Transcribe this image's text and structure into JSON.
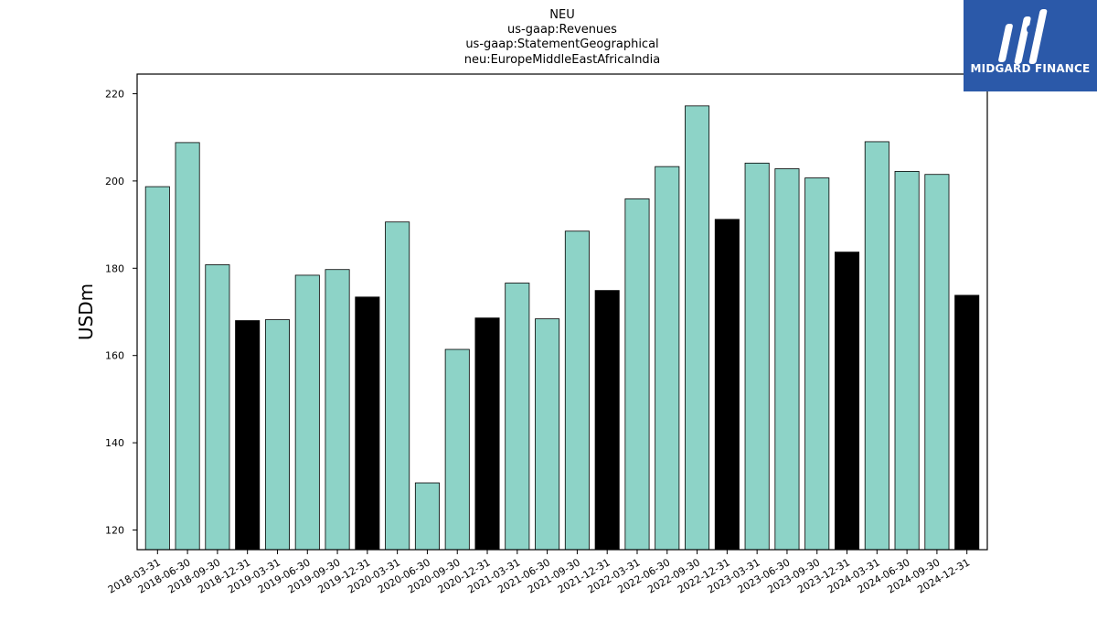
{
  "title_lines": [
    "NEU",
    "us-gaap:Revenues",
    "us-gaap:StatementGeographical",
    "neu:EuropeMiddleEastAfricaIndia"
  ],
  "logo": {
    "text": "MIDGARD FINANCE",
    "color": "#2b59a9"
  },
  "chart_data": {
    "type": "bar",
    "title": "NEU\nus-gaap:Revenues\nus-gaap:StatementGeographical\nneu:EuropeMiddleEastAfricaIndia",
    "xlabel": "",
    "ylabel": "USDm",
    "ylim": [
      115.5,
      224.5
    ],
    "yticks": [
      120,
      140,
      160,
      180,
      200,
      220
    ],
    "grid": false,
    "colors": {
      "quarter": "#8dd3c7",
      "year_end": "#000000"
    },
    "categories": [
      "2018-03-31",
      "2018-06-30",
      "2018-09-30",
      "2018-12-31",
      "2019-03-31",
      "2019-06-30",
      "2019-09-30",
      "2019-12-31",
      "2020-03-31",
      "2020-06-30",
      "2020-09-30",
      "2020-12-31",
      "2021-03-31",
      "2021-06-30",
      "2021-09-30",
      "2021-12-31",
      "2022-03-31",
      "2022-06-30",
      "2022-09-30",
      "2022-12-31",
      "2023-03-31",
      "2023-06-30",
      "2023-09-30",
      "2023-12-31",
      "2024-03-31",
      "2024-06-30",
      "2024-09-30",
      "2024-12-31"
    ],
    "values": [
      198.7,
      208.8,
      180.8,
      168.0,
      168.2,
      178.4,
      179.7,
      173.4,
      190.6,
      130.8,
      161.4,
      168.6,
      176.6,
      168.4,
      188.5,
      174.9,
      195.9,
      203.3,
      217.2,
      191.2,
      204.1,
      202.8,
      200.7,
      183.7,
      209.0,
      202.2,
      201.5,
      173.8
    ],
    "highlight": [
      false,
      false,
      false,
      true,
      false,
      false,
      false,
      true,
      false,
      false,
      false,
      true,
      false,
      false,
      false,
      true,
      false,
      false,
      false,
      true,
      false,
      false,
      false,
      true,
      false,
      false,
      false,
      true
    ]
  }
}
